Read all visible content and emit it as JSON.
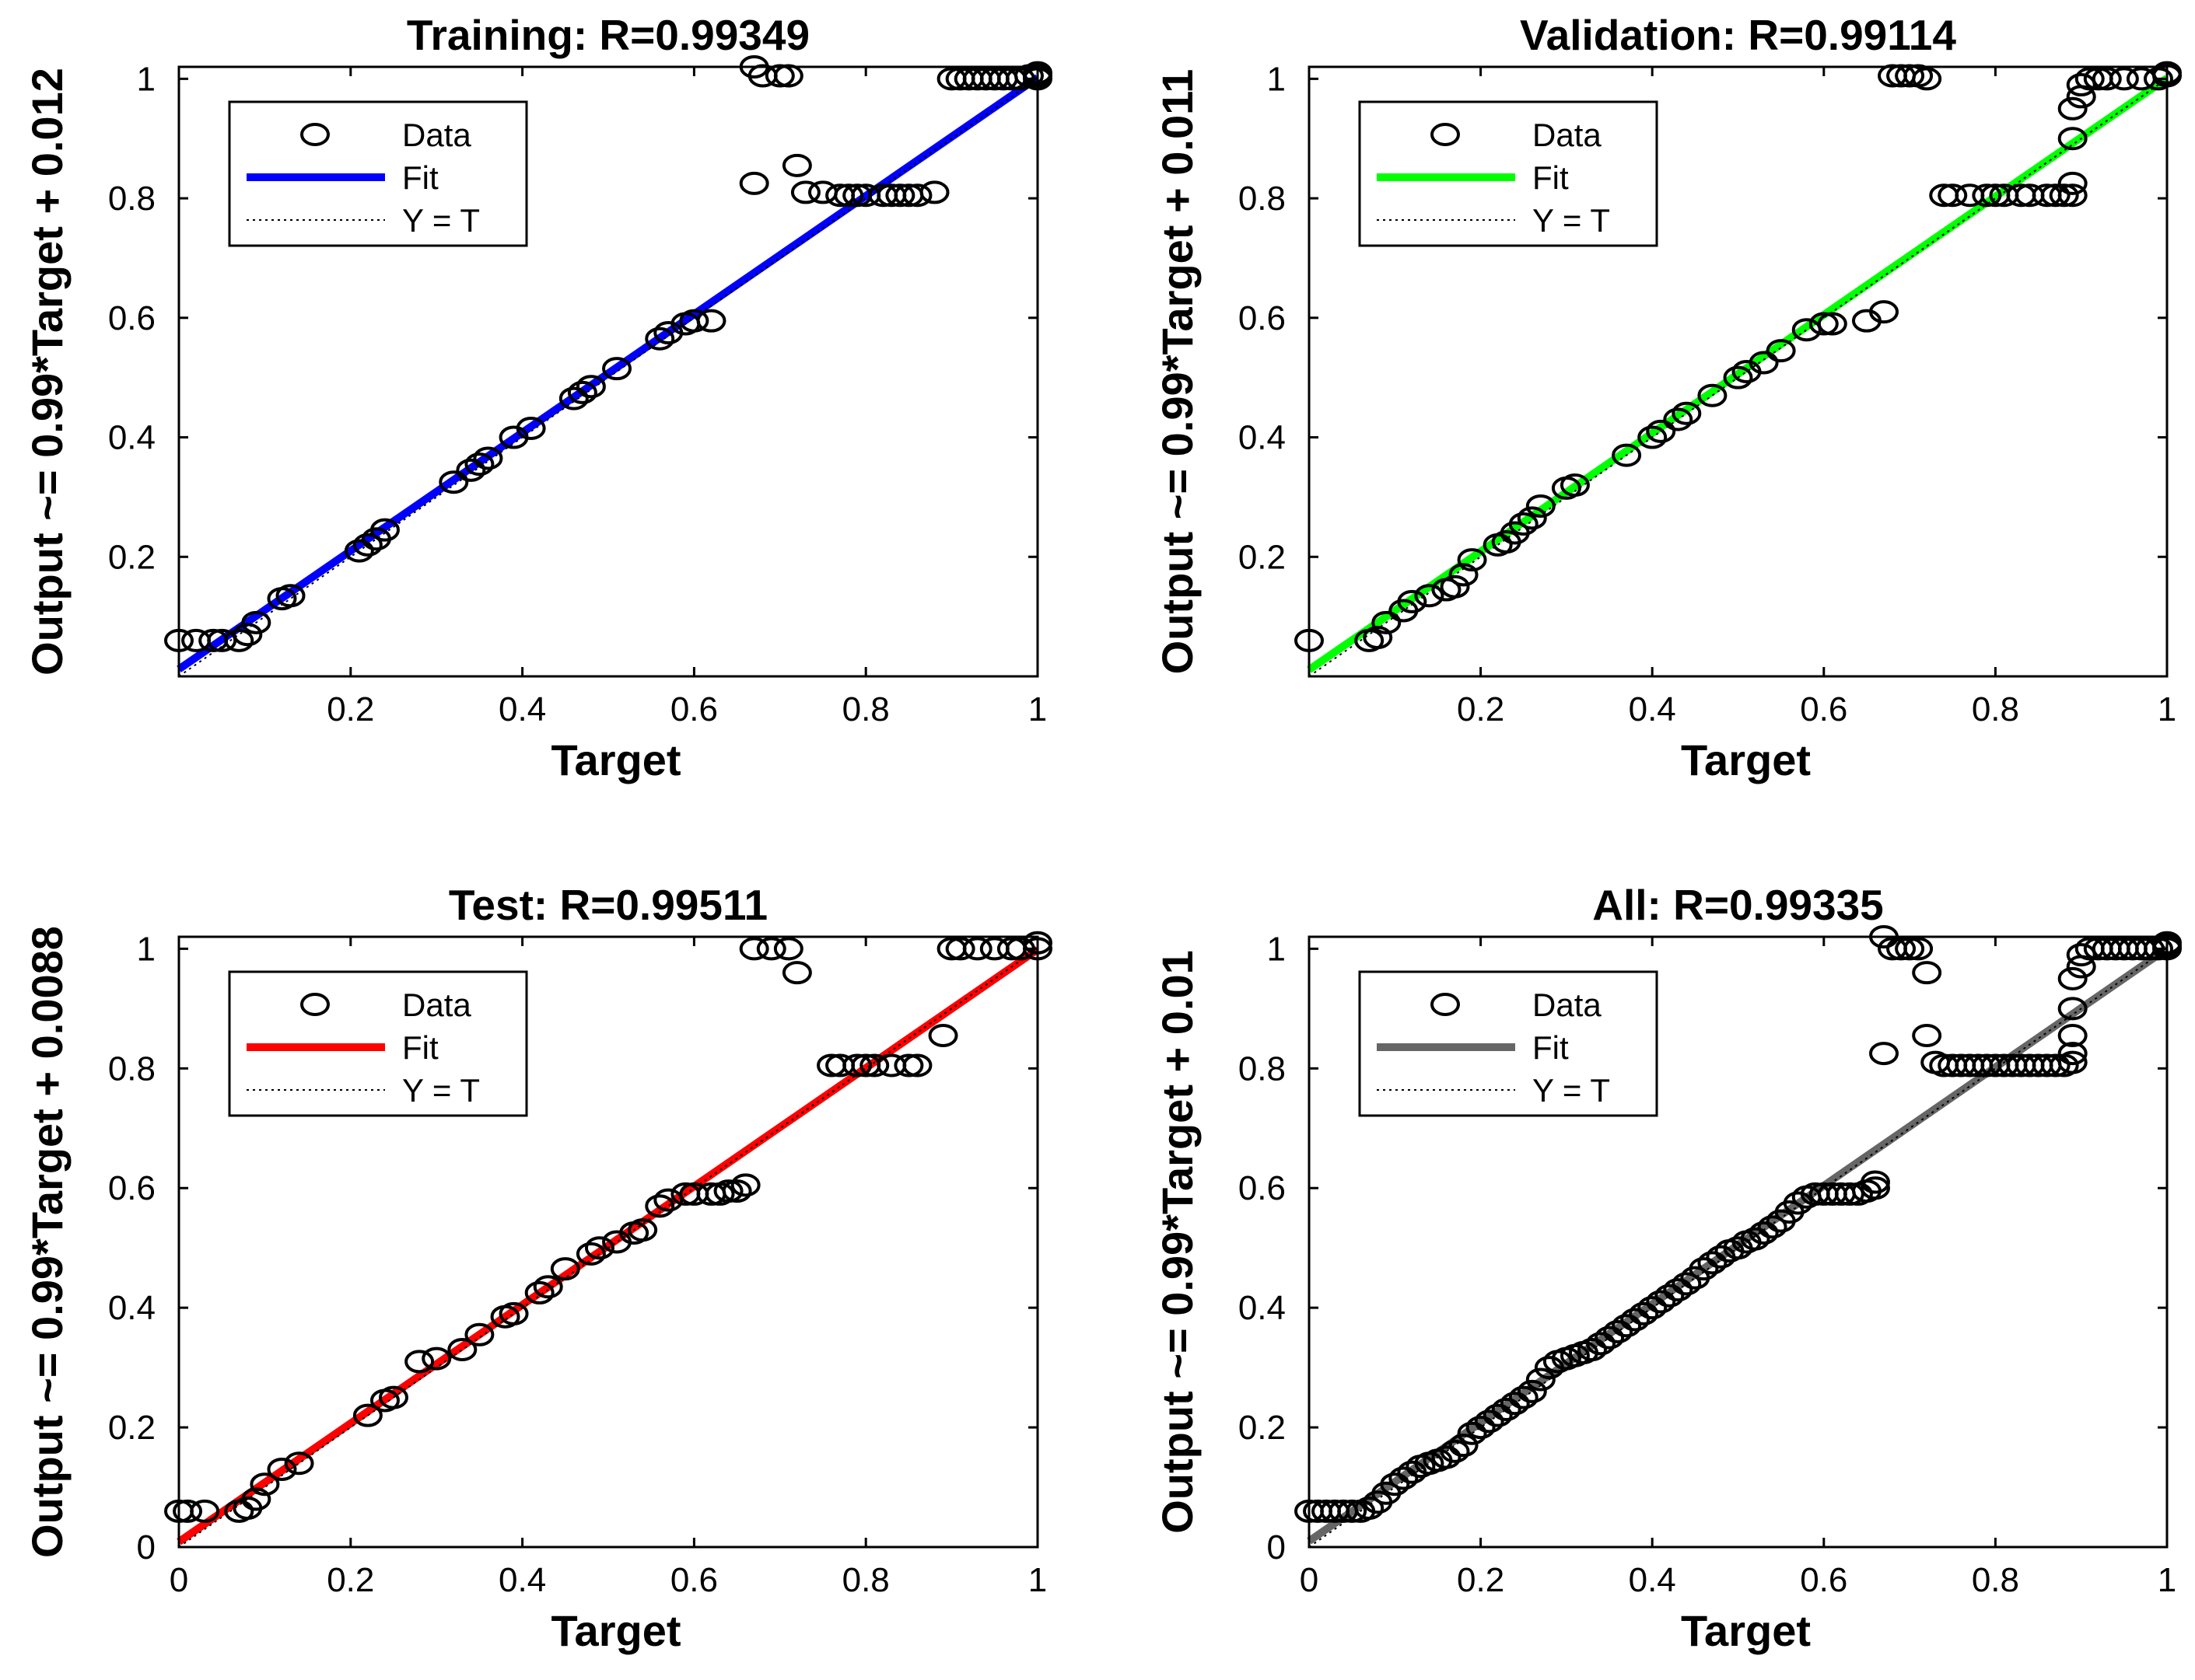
{
  "figure": {
    "name": "neural network regression plots"
  },
  "chart_data": [
    {
      "id": "training",
      "type": "scatter",
      "title": "Training: R=0.99349",
      "xlabel": "Target",
      "ylabel": "Output ~= 0.99*Target + 0.012",
      "xlim": [
        0,
        1
      ],
      "ylim": [
        0,
        1.02
      ],
      "xticks": [
        0.2,
        0.4,
        0.6,
        0.8,
        1
      ],
      "xtick_labels": [
        "0.2",
        "0.4",
        "0.6",
        "0.8",
        "1"
      ],
      "yticks": [
        0.2,
        0.4,
        0.6,
        0.8,
        1
      ],
      "ytick_labels": [
        "0.2",
        "0.4",
        "0.6",
        "0.8",
        "1"
      ],
      "fit": {
        "slope": 0.99,
        "intercept": 0.012,
        "color": "#0000ff"
      },
      "legend": {
        "position": "top-left",
        "entries": [
          "Data",
          "Fit",
          "Y = T"
        ]
      },
      "points": [
        [
          0.0,
          0.06
        ],
        [
          0.02,
          0.06
        ],
        [
          0.04,
          0.06
        ],
        [
          0.05,
          0.06
        ],
        [
          0.07,
          0.06
        ],
        [
          0.08,
          0.07
        ],
        [
          0.09,
          0.09
        ],
        [
          0.12,
          0.13
        ],
        [
          0.13,
          0.135
        ],
        [
          0.21,
          0.21
        ],
        [
          0.22,
          0.22
        ],
        [
          0.23,
          0.23
        ],
        [
          0.24,
          0.245
        ],
        [
          0.32,
          0.325
        ],
        [
          0.34,
          0.345
        ],
        [
          0.35,
          0.355
        ],
        [
          0.36,
          0.365
        ],
        [
          0.39,
          0.4
        ],
        [
          0.41,
          0.415
        ],
        [
          0.46,
          0.465
        ],
        [
          0.47,
          0.475
        ],
        [
          0.48,
          0.485
        ],
        [
          0.51,
          0.515
        ],
        [
          0.56,
          0.565
        ],
        [
          0.57,
          0.575
        ],
        [
          0.59,
          0.59
        ],
        [
          0.6,
          0.595
        ],
        [
          0.62,
          0.595
        ],
        [
          0.67,
          1.02
        ],
        [
          0.68,
          1.005
        ],
        [
          0.7,
          1.005
        ],
        [
          0.71,
          1.005
        ],
        [
          0.67,
          0.825
        ],
        [
          0.72,
          0.855
        ],
        [
          0.73,
          0.81
        ],
        [
          0.75,
          0.81
        ],
        [
          0.77,
          0.805
        ],
        [
          0.78,
          0.805
        ],
        [
          0.79,
          0.805
        ],
        [
          0.8,
          0.805
        ],
        [
          0.82,
          0.805
        ],
        [
          0.83,
          0.805
        ],
        [
          0.84,
          0.805
        ],
        [
          0.85,
          0.805
        ],
        [
          0.86,
          0.805
        ],
        [
          0.88,
          0.81
        ],
        [
          0.9,
          1.0
        ],
        [
          0.91,
          1.0
        ],
        [
          0.92,
          1.0
        ],
        [
          0.93,
          1.0
        ],
        [
          0.94,
          1.0
        ],
        [
          0.95,
          1.0
        ],
        [
          0.96,
          1.0
        ],
        [
          0.97,
          1.0
        ],
        [
          0.98,
          1.0
        ],
        [
          0.99,
          1.005
        ],
        [
          1.0,
          1.0
        ],
        [
          1.0,
          1.005
        ],
        [
          1.0,
          1.01
        ]
      ]
    },
    {
      "id": "validation",
      "type": "scatter",
      "title": "Validation: R=0.99114",
      "xlabel": "Target",
      "ylabel": "Output ~= 0.99*Target + 0.011",
      "xlim": [
        0,
        1
      ],
      "ylim": [
        0,
        1.02
      ],
      "xticks": [
        0.2,
        0.4,
        0.6,
        0.8,
        1
      ],
      "xtick_labels": [
        "0.2",
        "0.4",
        "0.6",
        "0.8",
        "1"
      ],
      "yticks": [
        0.2,
        0.4,
        0.6,
        0.8,
        1
      ],
      "ytick_labels": [
        "0.2",
        "0.4",
        "0.6",
        "0.8",
        "1"
      ],
      "fit": {
        "slope": 0.99,
        "intercept": 0.011,
        "color": "#00ff00"
      },
      "legend": {
        "position": "top-left",
        "entries": [
          "Data",
          "Fit",
          "Y = T"
        ]
      },
      "points": [
        [
          0.0,
          0.06
        ],
        [
          0.07,
          0.06
        ],
        [
          0.08,
          0.065
        ],
        [
          0.09,
          0.09
        ],
        [
          0.11,
          0.11
        ],
        [
          0.12,
          0.125
        ],
        [
          0.14,
          0.135
        ],
        [
          0.16,
          0.145
        ],
        [
          0.17,
          0.15
        ],
        [
          0.18,
          0.17
        ],
        [
          0.19,
          0.195
        ],
        [
          0.22,
          0.22
        ],
        [
          0.23,
          0.225
        ],
        [
          0.24,
          0.24
        ],
        [
          0.25,
          0.255
        ],
        [
          0.26,
          0.265
        ],
        [
          0.27,
          0.285
        ],
        [
          0.3,
          0.315
        ],
        [
          0.31,
          0.32
        ],
        [
          0.37,
          0.37
        ],
        [
          0.4,
          0.4
        ],
        [
          0.41,
          0.41
        ],
        [
          0.43,
          0.43
        ],
        [
          0.44,
          0.44
        ],
        [
          0.47,
          0.47
        ],
        [
          0.5,
          0.5
        ],
        [
          0.51,
          0.51
        ],
        [
          0.53,
          0.525
        ],
        [
          0.55,
          0.545
        ],
        [
          0.58,
          0.58
        ],
        [
          0.6,
          0.59
        ],
        [
          0.61,
          0.59
        ],
        [
          0.65,
          0.595
        ],
        [
          0.67,
          0.61
        ],
        [
          0.68,
          1.005
        ],
        [
          0.69,
          1.005
        ],
        [
          0.7,
          1.005
        ],
        [
          0.71,
          1.005
        ],
        [
          0.72,
          1.0
        ],
        [
          0.74,
          0.805
        ],
        [
          0.75,
          0.805
        ],
        [
          0.77,
          0.805
        ],
        [
          0.79,
          0.805
        ],
        [
          0.8,
          0.805
        ],
        [
          0.81,
          0.805
        ],
        [
          0.83,
          0.805
        ],
        [
          0.84,
          0.805
        ],
        [
          0.86,
          0.805
        ],
        [
          0.87,
          0.805
        ],
        [
          0.88,
          0.805
        ],
        [
          0.89,
          0.805
        ],
        [
          0.89,
          0.825
        ],
        [
          0.89,
          0.9
        ],
        [
          0.89,
          0.95
        ],
        [
          0.9,
          0.97
        ],
        [
          0.9,
          0.99
        ],
        [
          0.91,
          1.0
        ],
        [
          0.92,
          1.0
        ],
        [
          0.93,
          1.0
        ],
        [
          0.95,
          1.0
        ],
        [
          0.97,
          1.0
        ],
        [
          0.99,
          1.0
        ],
        [
          1.0,
          1.005
        ],
        [
          1.0,
          1.01
        ]
      ]
    },
    {
      "id": "test",
      "type": "scatter",
      "title": "Test: R=0.99511",
      "xlabel": "Target",
      "ylabel": "Output ~= 0.99*Target + 0.0088",
      "xlim": [
        0,
        1
      ],
      "ylim": [
        0,
        1.02
      ],
      "xticks": [
        0,
        0.2,
        0.4,
        0.6,
        0.8,
        1
      ],
      "xtick_labels": [
        "0",
        "0.2",
        "0.4",
        "0.6",
        "0.8",
        "1"
      ],
      "yticks": [
        0,
        0.2,
        0.4,
        0.6,
        0.8,
        1
      ],
      "ytick_labels": [
        "0",
        "0.2",
        "0.4",
        "0.6",
        "0.8",
        "1"
      ],
      "fit": {
        "slope": 0.99,
        "intercept": 0.0088,
        "color": "#ff0000"
      },
      "legend": {
        "position": "top-left",
        "entries": [
          "Data",
          "Fit",
          "Y = T"
        ]
      },
      "points": [
        [
          0.0,
          0.06
        ],
        [
          0.01,
          0.06
        ],
        [
          0.03,
          0.06
        ],
        [
          0.07,
          0.06
        ],
        [
          0.08,
          0.065
        ],
        [
          0.09,
          0.08
        ],
        [
          0.1,
          0.105
        ],
        [
          0.12,
          0.13
        ],
        [
          0.14,
          0.14
        ],
        [
          0.22,
          0.22
        ],
        [
          0.24,
          0.245
        ],
        [
          0.25,
          0.25
        ],
        [
          0.28,
          0.31
        ],
        [
          0.3,
          0.315
        ],
        [
          0.33,
          0.33
        ],
        [
          0.35,
          0.355
        ],
        [
          0.38,
          0.385
        ],
        [
          0.39,
          0.39
        ],
        [
          0.42,
          0.425
        ],
        [
          0.43,
          0.435
        ],
        [
          0.45,
          0.465
        ],
        [
          0.48,
          0.49
        ],
        [
          0.49,
          0.5
        ],
        [
          0.51,
          0.51
        ],
        [
          0.53,
          0.525
        ],
        [
          0.54,
          0.53
        ],
        [
          0.56,
          0.57
        ],
        [
          0.57,
          0.58
        ],
        [
          0.59,
          0.59
        ],
        [
          0.6,
          0.59
        ],
        [
          0.62,
          0.59
        ],
        [
          0.63,
          0.59
        ],
        [
          0.64,
          0.595
        ],
        [
          0.65,
          0.595
        ],
        [
          0.66,
          0.605
        ],
        [
          0.67,
          1.0
        ],
        [
          0.69,
          1.0
        ],
        [
          0.71,
          1.0
        ],
        [
          0.72,
          0.96
        ],
        [
          0.76,
          0.805
        ],
        [
          0.77,
          0.805
        ],
        [
          0.79,
          0.805
        ],
        [
          0.8,
          0.805
        ],
        [
          0.81,
          0.805
        ],
        [
          0.83,
          0.805
        ],
        [
          0.85,
          0.805
        ],
        [
          0.86,
          0.805
        ],
        [
          0.89,
          0.855
        ],
        [
          0.9,
          1.0
        ],
        [
          0.91,
          1.0
        ],
        [
          0.93,
          1.0
        ],
        [
          0.95,
          1.0
        ],
        [
          0.97,
          1.0
        ],
        [
          0.98,
          1.0
        ],
        [
          1.0,
          1.0
        ],
        [
          1.0,
          1.01
        ]
      ]
    },
    {
      "id": "all",
      "type": "scatter",
      "title": "All: R=0.99335",
      "xlabel": "Target",
      "ylabel": "Output ~= 0.99*Target + 0.01",
      "xlim": [
        0,
        1
      ],
      "ylim": [
        0,
        1.02
      ],
      "xticks": [
        0,
        0.2,
        0.4,
        0.6,
        0.8,
        1
      ],
      "xtick_labels": [
        "0",
        "0.2",
        "0.4",
        "0.6",
        "0.8",
        "1"
      ],
      "yticks": [
        0,
        0.2,
        0.4,
        0.6,
        0.8,
        1
      ],
      "ytick_labels": [
        "0",
        "0.2",
        "0.4",
        "0.6",
        "0.8",
        "1"
      ],
      "fit": {
        "slope": 0.99,
        "intercept": 0.01,
        "color": "#666666"
      },
      "legend": {
        "position": "top-left",
        "entries": [
          "Data",
          "Fit",
          "Y = T"
        ]
      },
      "points": [
        [
          0.0,
          0.06
        ],
        [
          0.01,
          0.06
        ],
        [
          0.02,
          0.06
        ],
        [
          0.03,
          0.06
        ],
        [
          0.04,
          0.06
        ],
        [
          0.05,
          0.06
        ],
        [
          0.06,
          0.06
        ],
        [
          0.07,
          0.065
        ],
        [
          0.08,
          0.075
        ],
        [
          0.09,
          0.09
        ],
        [
          0.1,
          0.105
        ],
        [
          0.11,
          0.115
        ],
        [
          0.12,
          0.125
        ],
        [
          0.13,
          0.135
        ],
        [
          0.14,
          0.14
        ],
        [
          0.15,
          0.145
        ],
        [
          0.16,
          0.15
        ],
        [
          0.17,
          0.16
        ],
        [
          0.18,
          0.17
        ],
        [
          0.19,
          0.19
        ],
        [
          0.2,
          0.2
        ],
        [
          0.21,
          0.21
        ],
        [
          0.22,
          0.22
        ],
        [
          0.23,
          0.23
        ],
        [
          0.24,
          0.24
        ],
        [
          0.25,
          0.25
        ],
        [
          0.26,
          0.26
        ],
        [
          0.27,
          0.28
        ],
        [
          0.28,
          0.3
        ],
        [
          0.29,
          0.31
        ],
        [
          0.3,
          0.315
        ],
        [
          0.31,
          0.32
        ],
        [
          0.32,
          0.325
        ],
        [
          0.33,
          0.33
        ],
        [
          0.34,
          0.34
        ],
        [
          0.35,
          0.35
        ],
        [
          0.36,
          0.36
        ],
        [
          0.37,
          0.37
        ],
        [
          0.38,
          0.38
        ],
        [
          0.39,
          0.39
        ],
        [
          0.4,
          0.4
        ],
        [
          0.41,
          0.41
        ],
        [
          0.42,
          0.42
        ],
        [
          0.43,
          0.43
        ],
        [
          0.44,
          0.44
        ],
        [
          0.45,
          0.45
        ],
        [
          0.46,
          0.465
        ],
        [
          0.47,
          0.475
        ],
        [
          0.48,
          0.485
        ],
        [
          0.49,
          0.495
        ],
        [
          0.5,
          0.5
        ],
        [
          0.51,
          0.51
        ],
        [
          0.52,
          0.515
        ],
        [
          0.53,
          0.525
        ],
        [
          0.54,
          0.535
        ],
        [
          0.55,
          0.545
        ],
        [
          0.56,
          0.56
        ],
        [
          0.57,
          0.575
        ],
        [
          0.58,
          0.585
        ],
        [
          0.59,
          0.59
        ],
        [
          0.6,
          0.59
        ],
        [
          0.61,
          0.59
        ],
        [
          0.62,
          0.59
        ],
        [
          0.63,
          0.59
        ],
        [
          0.64,
          0.59
        ],
        [
          0.65,
          0.595
        ],
        [
          0.66,
          0.6
        ],
        [
          0.66,
          0.61
        ],
        [
          0.67,
          0.825
        ],
        [
          0.67,
          1.02
        ],
        [
          0.68,
          1.0
        ],
        [
          0.69,
          1.0
        ],
        [
          0.7,
          1.0
        ],
        [
          0.71,
          1.0
        ],
        [
          0.72,
          0.96
        ],
        [
          0.72,
          0.855
        ],
        [
          0.73,
          0.81
        ],
        [
          0.74,
          0.805
        ],
        [
          0.75,
          0.805
        ],
        [
          0.76,
          0.805
        ],
        [
          0.77,
          0.805
        ],
        [
          0.78,
          0.805
        ],
        [
          0.79,
          0.805
        ],
        [
          0.8,
          0.805
        ],
        [
          0.81,
          0.805
        ],
        [
          0.82,
          0.805
        ],
        [
          0.83,
          0.805
        ],
        [
          0.84,
          0.805
        ],
        [
          0.85,
          0.805
        ],
        [
          0.86,
          0.805
        ],
        [
          0.87,
          0.805
        ],
        [
          0.88,
          0.805
        ],
        [
          0.89,
          0.81
        ],
        [
          0.89,
          0.825
        ],
        [
          0.89,
          0.855
        ],
        [
          0.89,
          0.9
        ],
        [
          0.89,
          0.95
        ],
        [
          0.9,
          0.97
        ],
        [
          0.9,
          0.99
        ],
        [
          0.91,
          1.0
        ],
        [
          0.92,
          1.0
        ],
        [
          0.93,
          1.0
        ],
        [
          0.94,
          1.0
        ],
        [
          0.95,
          1.0
        ],
        [
          0.96,
          1.0
        ],
        [
          0.97,
          1.0
        ],
        [
          0.98,
          1.0
        ],
        [
          0.99,
          1.0
        ],
        [
          1.0,
          1.0
        ],
        [
          1.0,
          1.005
        ],
        [
          1.0,
          1.01
        ]
      ]
    }
  ]
}
